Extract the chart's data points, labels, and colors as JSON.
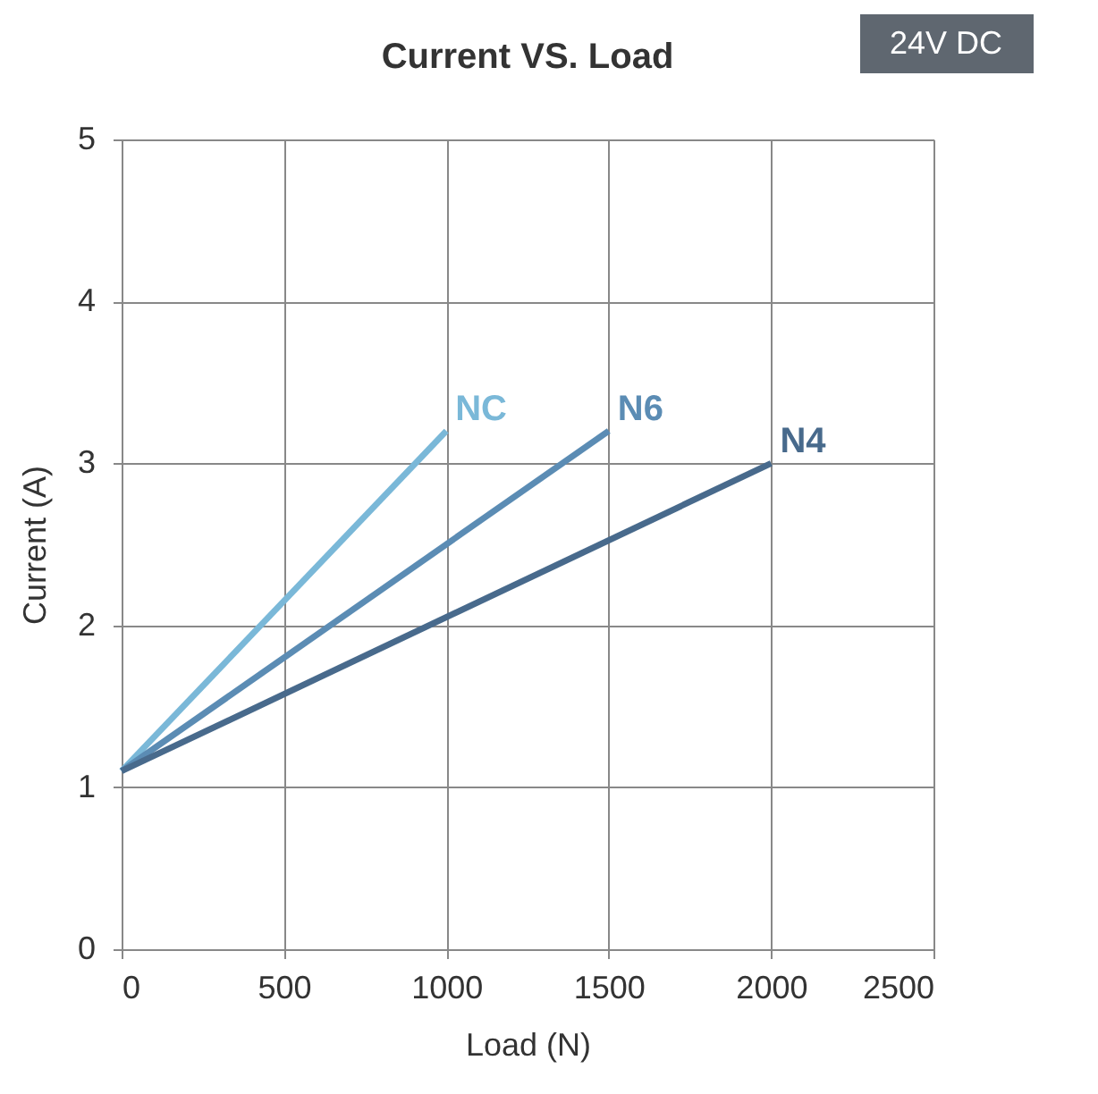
{
  "chart_data": {
    "type": "line",
    "title": "Current  VS. Load",
    "xlabel": "Load (N)",
    "ylabel": "Current (A)",
    "annotations": [
      "24V DC"
    ],
    "xlim": [
      0,
      2500
    ],
    "xticks": [
      0,
      500,
      1000,
      1500,
      2000,
      2500
    ],
    "ylim": [
      0,
      5
    ],
    "yticks": [
      0,
      1,
      2,
      3,
      4,
      5
    ],
    "grid": true,
    "marker": "none",
    "line_style": "solid",
    "series": [
      {
        "name": "NC",
        "color": "#7ab8d8",
        "x": [
          0,
          1000
        ],
        "values": [
          1.1,
          3.2
        ]
      },
      {
        "name": "N6",
        "color": "#5b8cb4",
        "x": [
          0,
          1500
        ],
        "values": [
          1.1,
          3.2
        ]
      },
      {
        "name": "N4",
        "color": "#486a8c",
        "x": [
          0,
          2000
        ],
        "values": [
          1.1,
          3.0
        ]
      }
    ]
  }
}
